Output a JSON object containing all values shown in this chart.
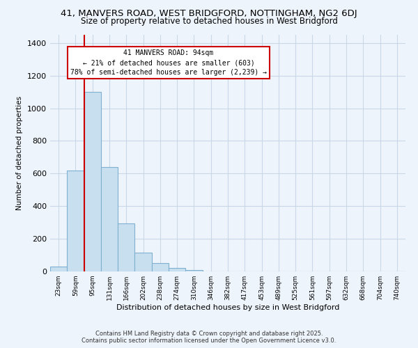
{
  "title1": "41, MANVERS ROAD, WEST BRIDGFORD, NOTTINGHAM, NG2 6DJ",
  "title2": "Size of property relative to detached houses in West Bridgford",
  "xlabel": "Distribution of detached houses by size in West Bridgford",
  "ylabel": "Number of detached properties",
  "bar_labels": [
    "23sqm",
    "59sqm",
    "95sqm",
    "131sqm",
    "166sqm",
    "202sqm",
    "238sqm",
    "274sqm",
    "310sqm",
    "346sqm",
    "382sqm",
    "417sqm",
    "453sqm",
    "489sqm",
    "525sqm",
    "561sqm",
    "597sqm",
    "632sqm",
    "668sqm",
    "704sqm",
    "740sqm"
  ],
  "bar_values": [
    30,
    620,
    1100,
    640,
    295,
    115,
    50,
    20,
    10,
    0,
    0,
    0,
    0,
    0,
    0,
    0,
    0,
    0,
    0,
    0,
    0
  ],
  "bar_color": "#c8dff0",
  "bar_edge_color": "#7fb0d0",
  "property_line_label": "41 MANVERS ROAD: 94sqm",
  "annotation_line2": "← 21% of detached houses are smaller (603)",
  "annotation_line3": "78% of semi-detached houses are larger (2,239) →",
  "annotation_box_color": "#ffffff",
  "annotation_box_edge_color": "#cc0000",
  "vline_color": "#cc0000",
  "ylim": [
    0,
    1450
  ],
  "yticks": [
    0,
    200,
    400,
    600,
    800,
    1000,
    1200,
    1400
  ],
  "grid_color": "#c8d8e8",
  "background_color": "#eef4fb",
  "footer1": "Contains HM Land Registry data © Crown copyright and database right 2025.",
  "footer2": "Contains public sector information licensed under the Open Government Licence v3.0."
}
